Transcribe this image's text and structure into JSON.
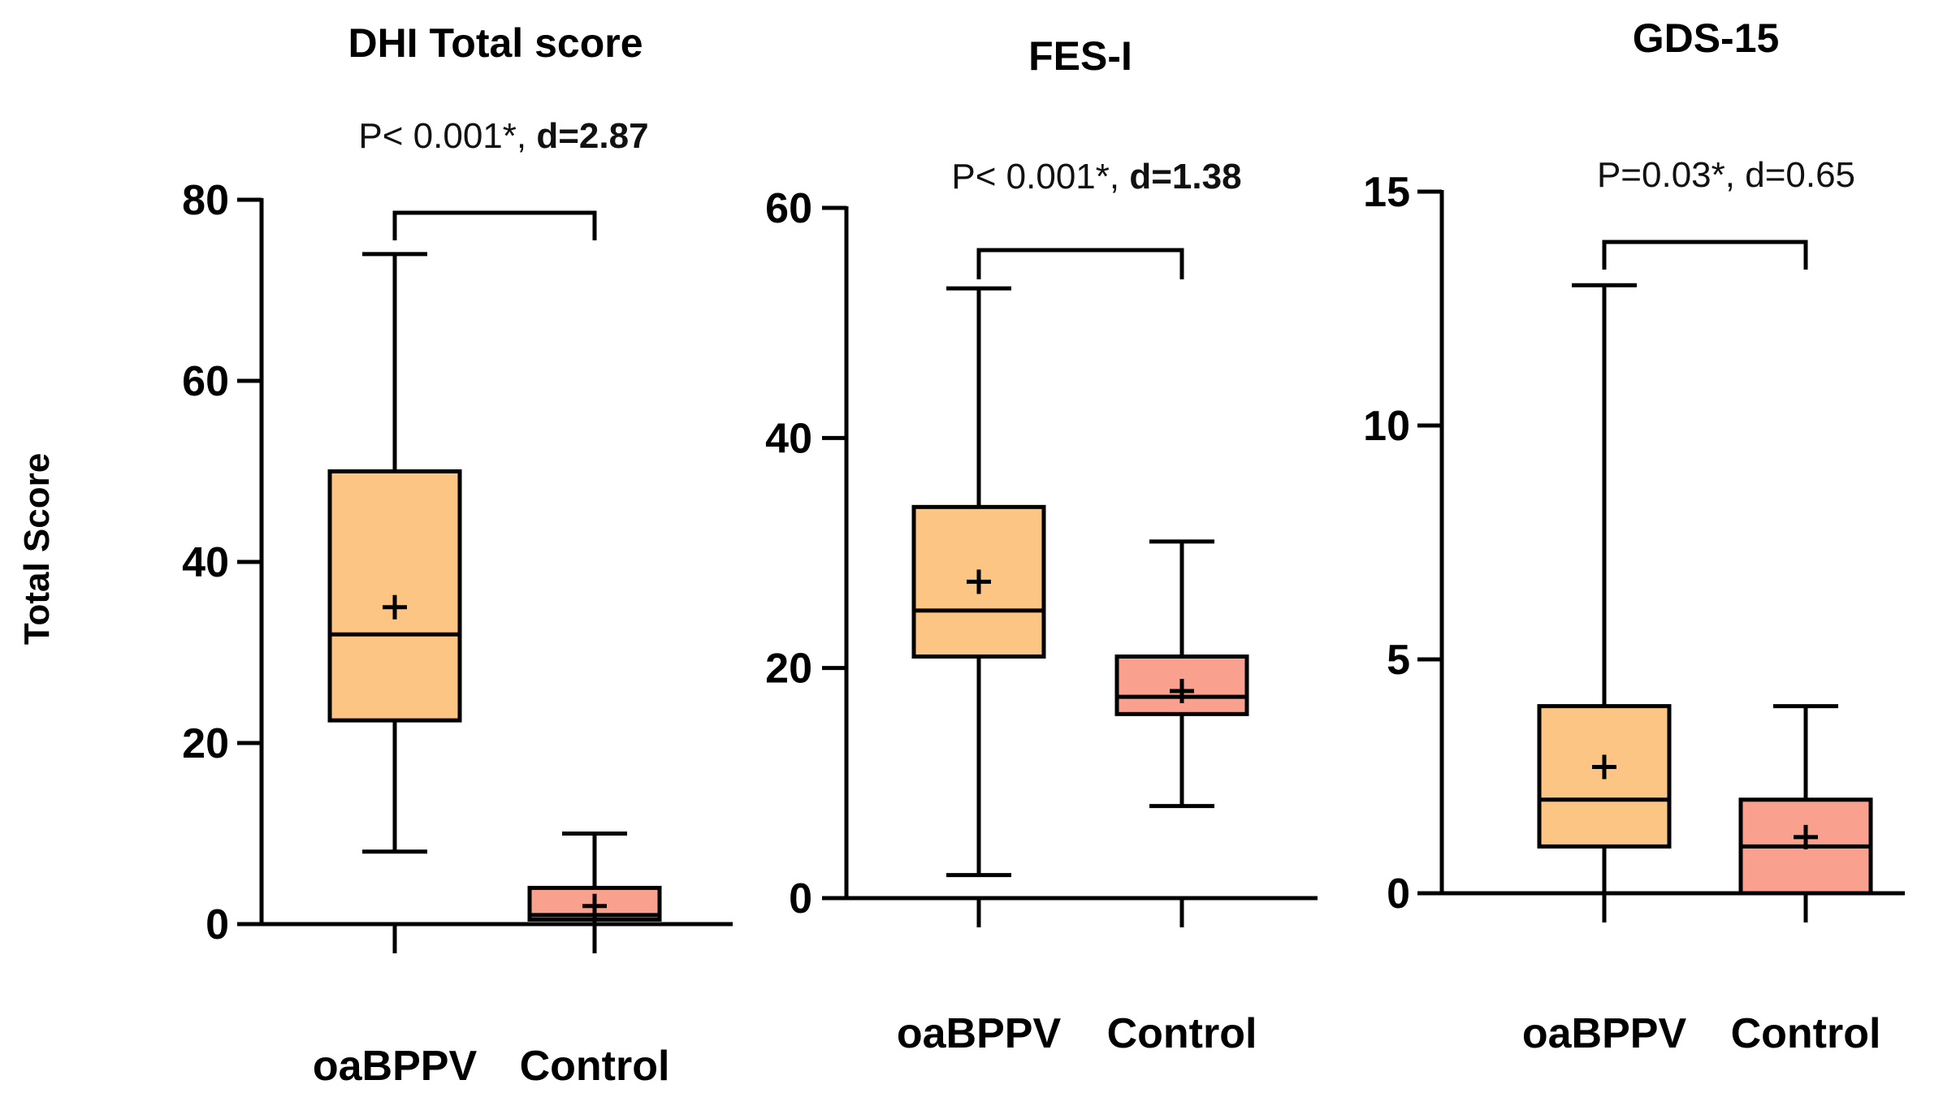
{
  "y_axis_label": "Total Score",
  "chart_data": [
    {
      "type": "box",
      "title": "DHI Total score",
      "annotation": {
        "p_text": "P< 0.001*, ",
        "d_text": "d=2.87",
        "d_bold": true
      },
      "ylabel": "Total Score",
      "ylim": [
        0,
        80
      ],
      "yticks": [
        "0",
        "20",
        "40",
        "60",
        "80"
      ],
      "categories": [
        "oaBPPV",
        "Control"
      ],
      "colors": [
        "#FDC583",
        "#F9A08E"
      ],
      "boxes": [
        {
          "group": "oaBPPV",
          "min": 8,
          "q1": 22.5,
          "median": 32,
          "q3": 50,
          "max": 74,
          "mean": 35
        },
        {
          "group": "Control",
          "min": 0,
          "q1": 0.5,
          "median": 1,
          "q3": 4,
          "max": 10,
          "mean": 2
        }
      ]
    },
    {
      "type": "box",
      "title": "FES-I",
      "annotation": {
        "p_text": "P< 0.001*, ",
        "d_text": "d=1.38",
        "d_bold": true
      },
      "ylim": [
        0,
        60
      ],
      "yticks": [
        "0",
        "20",
        "40",
        "60"
      ],
      "categories": [
        "oaBPPV",
        "Control"
      ],
      "colors": [
        "#FDC583",
        "#F9A08E"
      ],
      "boxes": [
        {
          "group": "oaBPPV",
          "min": 2,
          "q1": 21,
          "median": 25,
          "q3": 34,
          "max": 53,
          "mean": 27.5
        },
        {
          "group": "Control",
          "min": 8,
          "q1": 16,
          "median": 17.5,
          "q3": 21,
          "max": 31,
          "mean": 18
        }
      ]
    },
    {
      "type": "box",
      "title": "GDS-15",
      "annotation": {
        "p_text": "P=0.03*, ",
        "d_text": "d=0.65",
        "d_bold": false
      },
      "ylim": [
        0,
        15
      ],
      "yticks": [
        "0",
        "5",
        "10",
        "15"
      ],
      "categories": [
        "oaBPPV",
        "Control"
      ],
      "colors": [
        "#FDC583",
        "#F9A08E"
      ],
      "boxes": [
        {
          "group": "oaBPPV",
          "min": 0,
          "q1": 1,
          "median": 2,
          "q3": 4,
          "max": 13,
          "mean": 2.7
        },
        {
          "group": "Control",
          "min": 0,
          "q1": 0,
          "median": 1,
          "q3": 2,
          "max": 4,
          "mean": 1.2
        }
      ]
    }
  ]
}
